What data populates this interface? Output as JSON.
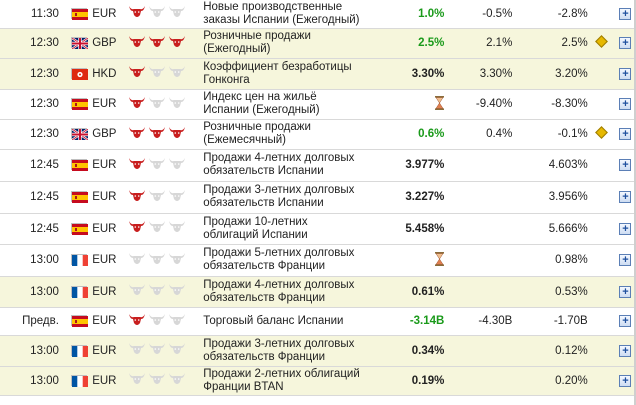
{
  "rows": [
    {
      "time": "11:30",
      "flag": "es",
      "currency": "EUR",
      "importance": 1,
      "event": "Новые производственные заказы Испании (Ежегодный)",
      "actual": "1.0%",
      "actual_color": "green",
      "forecast": "-0.5%",
      "previous": "-2.8%",
      "revised": false,
      "highlight": false,
      "pending": false
    },
    {
      "time": "12:30",
      "flag": "gb",
      "currency": "GBP",
      "importance": 3,
      "event": "Розничные продажи (Ежегодный)",
      "actual": "2.5%",
      "actual_color": "green",
      "forecast": "2.1%",
      "previous": "2.5%",
      "revised": true,
      "highlight": true,
      "pending": false
    },
    {
      "time": "12:30",
      "flag": "hk",
      "currency": "HKD",
      "importance": 1,
      "event": "Коэффициент безработицы Гонконга",
      "actual": "3.30%",
      "actual_color": "black",
      "forecast": "3.30%",
      "previous": "3.20%",
      "revised": false,
      "highlight": true,
      "pending": false
    },
    {
      "time": "12:30",
      "flag": "es",
      "currency": "EUR",
      "importance": 1,
      "event": "Индекс цен на жильё Испании (Ежегодный)",
      "actual": "",
      "actual_color": "black",
      "forecast": "-9.40%",
      "previous": "-8.30%",
      "revised": false,
      "highlight": false,
      "pending": true
    },
    {
      "time": "12:30",
      "flag": "gb",
      "currency": "GBP",
      "importance": 3,
      "event": "Розничные продажи (Ежемесячный)",
      "actual": "0.6%",
      "actual_color": "green",
      "forecast": "0.4%",
      "previous": "-0.1%",
      "revised": true,
      "highlight": false,
      "pending": false
    },
    {
      "time": "12:45",
      "flag": "es",
      "currency": "EUR",
      "importance": 1,
      "event": "Продажи 4-летних долговых обязательств Испании",
      "actual": "3.977%",
      "actual_color": "black",
      "forecast": "",
      "previous": "4.603%",
      "revised": false,
      "highlight": false,
      "pending": false
    },
    {
      "time": "12:45",
      "flag": "es",
      "currency": "EUR",
      "importance": 1,
      "event": "Продажи 3-летних долговых обязательств Испании",
      "actual": "3.227%",
      "actual_color": "black",
      "forecast": "",
      "previous": "3.956%",
      "revised": false,
      "highlight": false,
      "pending": false
    },
    {
      "time": "12:45",
      "flag": "es",
      "currency": "EUR",
      "importance": 1,
      "event": "Продажи 10-летних облигаций Испании",
      "actual": "5.458%",
      "actual_color": "black",
      "forecast": "",
      "previous": "5.666%",
      "revised": false,
      "highlight": false,
      "pending": false
    },
    {
      "time": "13:00",
      "flag": "fr",
      "currency": "EUR",
      "importance": 0,
      "event": "Продажи 5-летних долговых обязательств Франции",
      "actual": "",
      "actual_color": "black",
      "forecast": "",
      "previous": "0.98%",
      "revised": false,
      "highlight": false,
      "pending": true
    },
    {
      "time": "13:00",
      "flag": "fr",
      "currency": "EUR",
      "importance": 0,
      "event": "Продажи 4-летних долговых обязательств Франции",
      "actual": "0.61%",
      "actual_color": "black",
      "forecast": "",
      "previous": "0.53%",
      "revised": false,
      "highlight": true,
      "pending": false
    },
    {
      "time": "Предв.",
      "flag": "es",
      "currency": "EUR",
      "importance": 1,
      "event": "Торговый баланс Испании",
      "actual": "-3.14B",
      "actual_color": "green",
      "forecast": "-4.30B",
      "previous": "-1.70B",
      "revised": false,
      "highlight": false,
      "pending": false
    },
    {
      "time": "13:00",
      "flag": "fr",
      "currency": "EUR",
      "importance": 0,
      "event": "Продажи 3-летних долговых обязательств Франции",
      "actual": "0.34%",
      "actual_color": "black",
      "forecast": "",
      "previous": "0.12%",
      "revised": false,
      "highlight": true,
      "pending": false
    },
    {
      "time": "13:00",
      "flag": "fr",
      "currency": "EUR",
      "importance": 0,
      "event": "Продажи 2-летних облигаций Франции BTAN",
      "actual": "0.19%",
      "actual_color": "black",
      "forecast": "",
      "previous": "0.20%",
      "revised": false,
      "highlight": true,
      "pending": false
    }
  ],
  "icons": {
    "importance": "bull-icon",
    "pending": "hourglass-icon",
    "revised": "revised-diamond-icon",
    "add": "plus-icon"
  },
  "colors": {
    "highlight_row": "#f6f6dc",
    "bull_active": "#c81e1e",
    "bull_inactive": "#d7d7d7",
    "green_value": "#1a9a1a"
  }
}
